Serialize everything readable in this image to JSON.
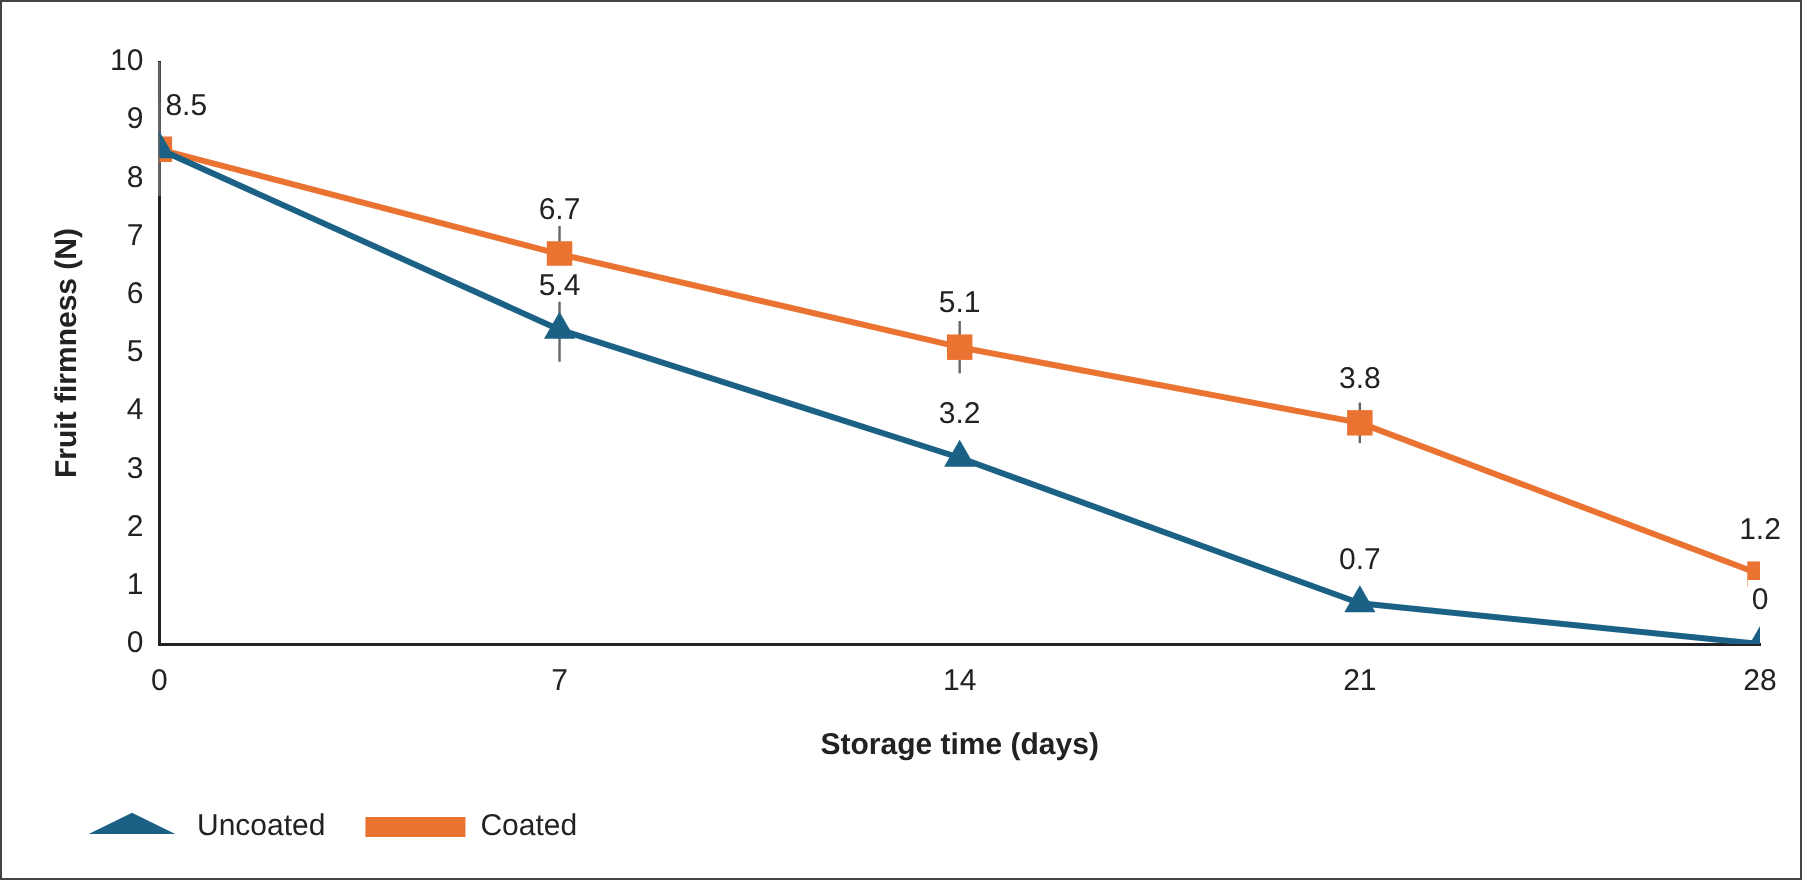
{
  "chart_data": {
    "type": "line",
    "xlabel": "Storage time (days)",
    "ylabel": "Fruit firmness (N)",
    "x": [
      0,
      7,
      14,
      21,
      28
    ],
    "series": [
      {
        "name": "Uncoated",
        "color": "#1a6185",
        "marker": "triangle",
        "values": [
          8.5,
          5.4,
          3.2,
          0.7,
          0
        ],
        "value_labels": [
          "8.5",
          "5.4",
          "3.2",
          "0.7",
          "0"
        ],
        "errors": [
          [
            7.7,
            10
          ],
          0.55,
          null,
          null,
          null
        ]
      },
      {
        "name": "Coated",
        "color": "#ea7331",
        "marker": "square",
        "values": [
          8.5,
          6.7,
          5.1,
          3.8,
          1.2
        ],
        "value_labels": [
          null,
          "6.7",
          "5.1",
          "3.8",
          "1.2"
        ],
        "errors": [
          0.8,
          0.6,
          0.45,
          0.35,
          null
        ]
      }
    ],
    "xlim": [
      0,
      28
    ],
    "xticks": [
      0,
      7,
      14,
      21,
      28
    ],
    "ylim": [
      0,
      10
    ],
    "yticks": [
      0,
      1,
      2,
      3,
      4,
      5,
      6,
      7,
      8,
      9,
      10
    ],
    "grid": false,
    "legend": "bottom left",
    "line_style": "solid"
  }
}
